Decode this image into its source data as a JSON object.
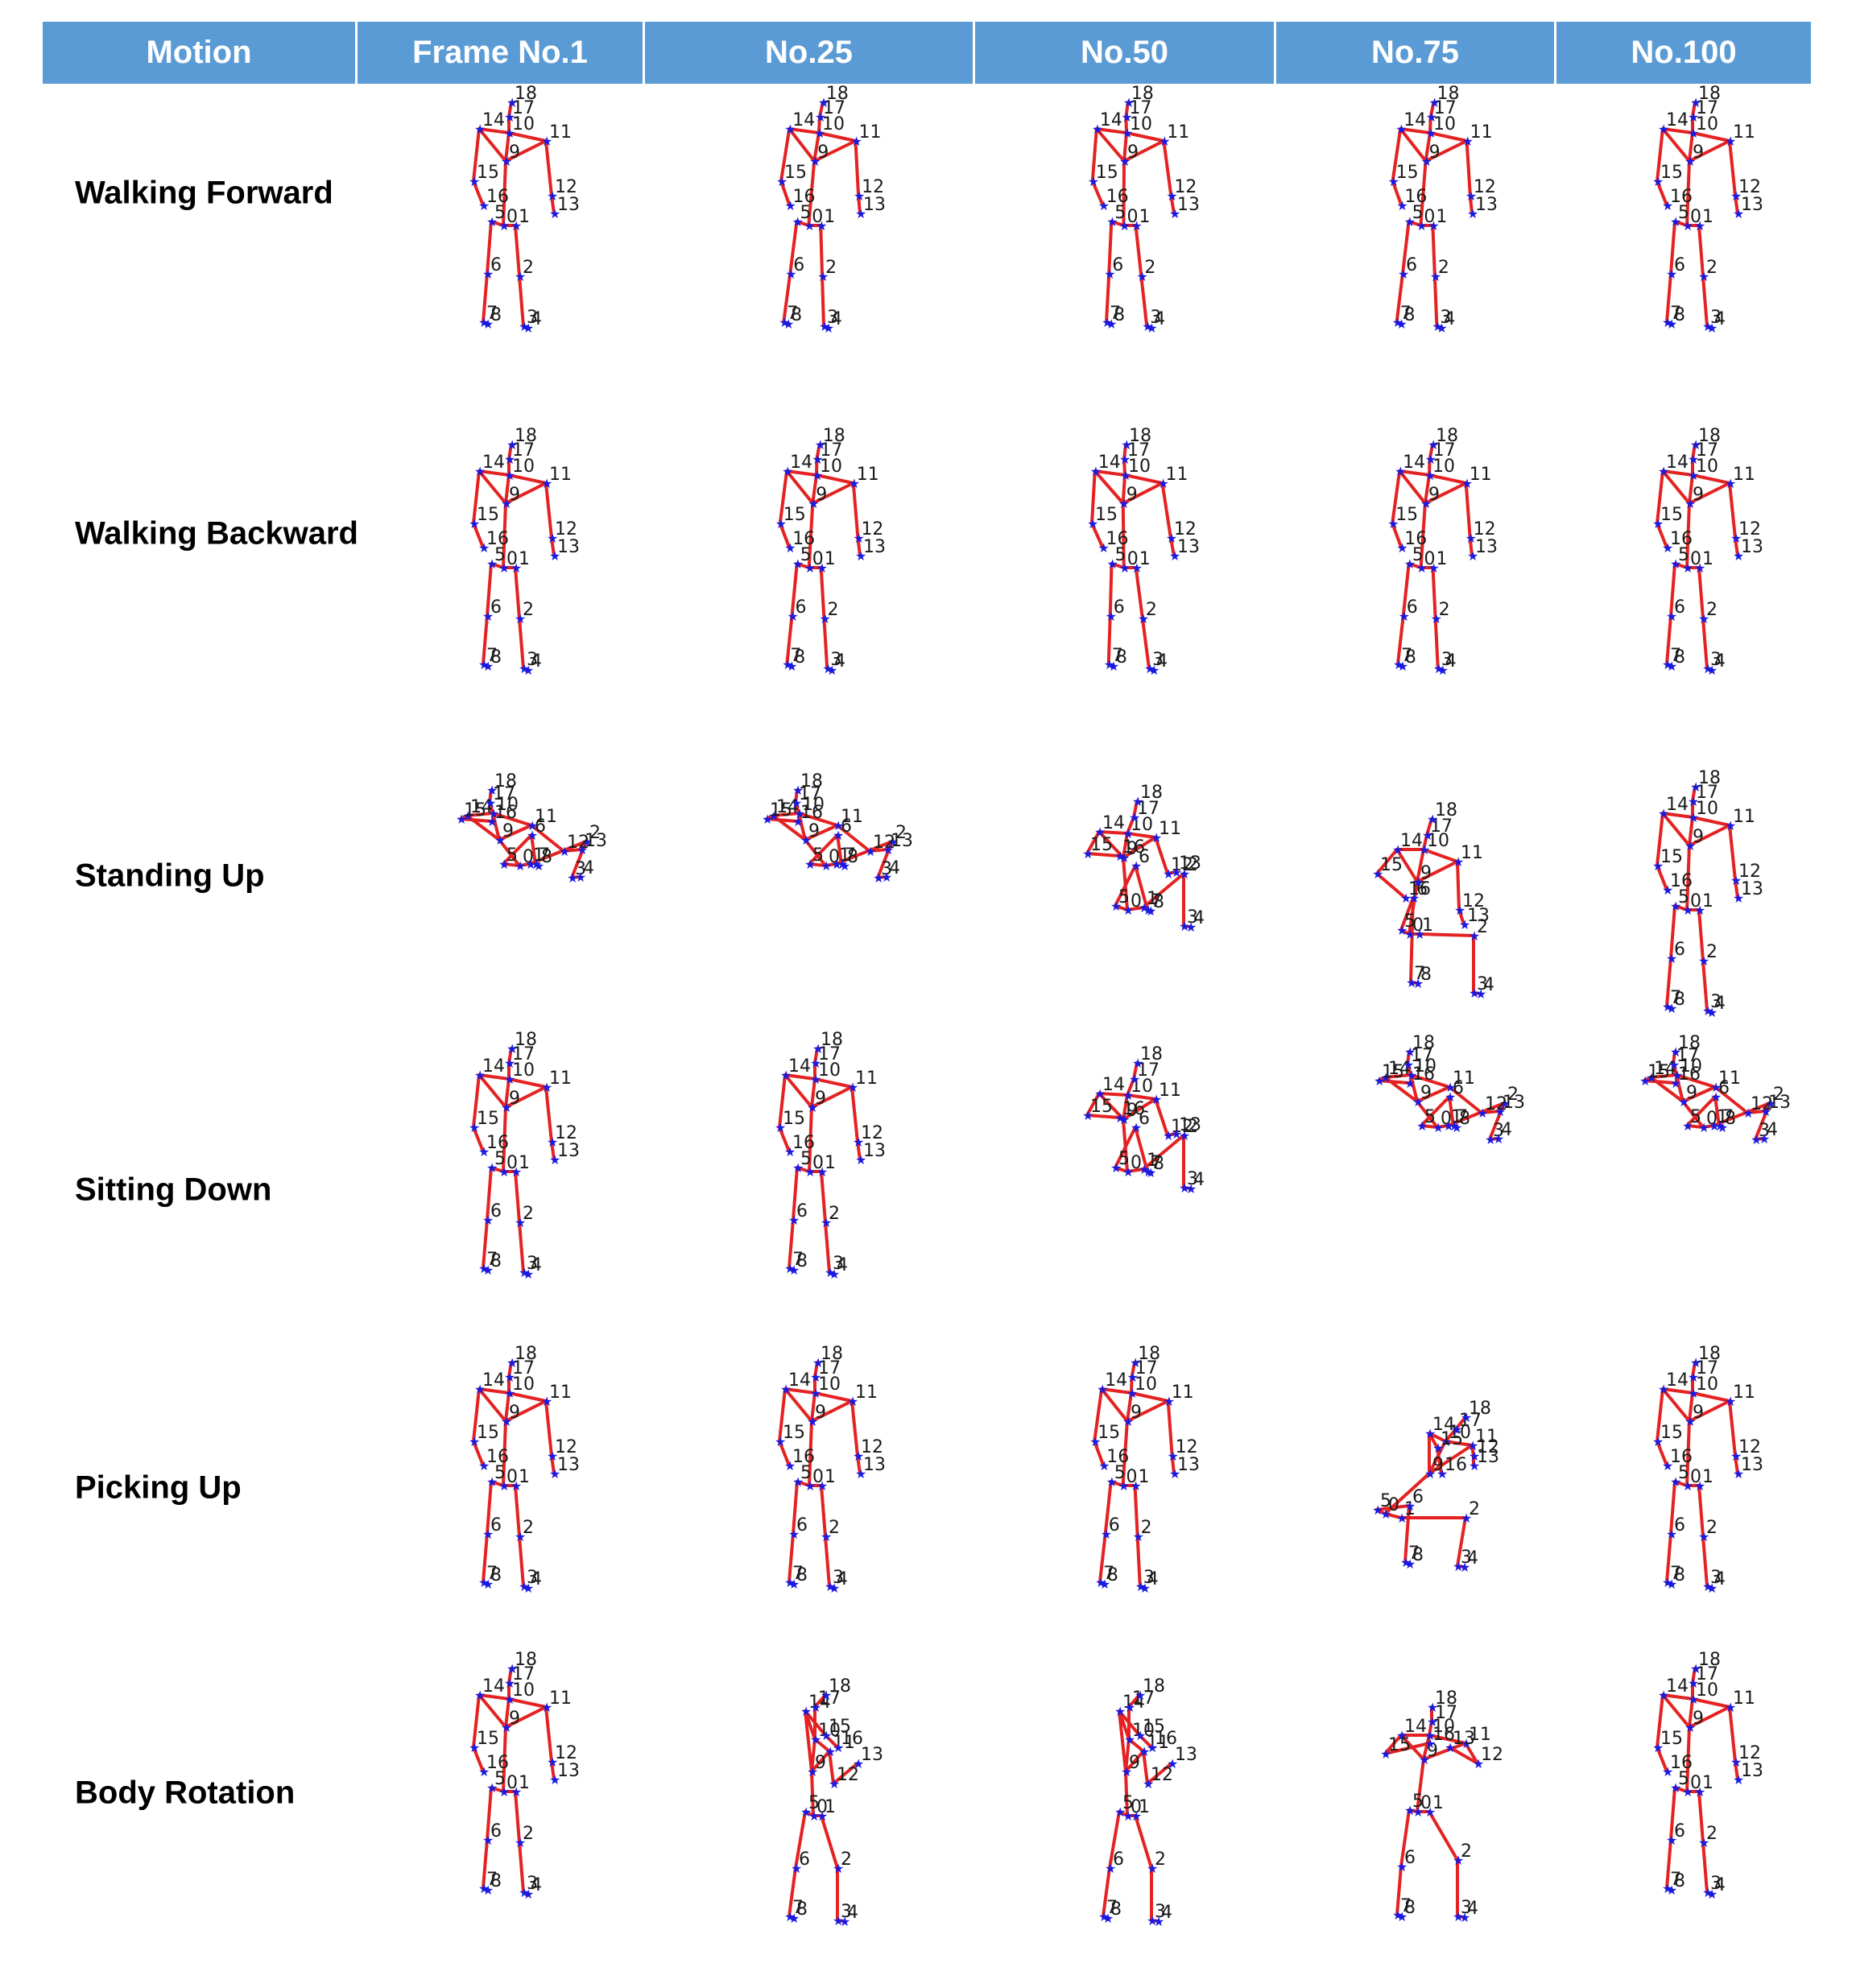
{
  "header": [
    "Motion",
    "Frame No.1",
    "No.25",
    "No.50",
    "No.75",
    "No.100"
  ],
  "rows": [
    {
      "motion": "Walking Forward",
      "frames": [
        {
          "pose": "stand",
          "lean": 0,
          "note": "frame-1"
        },
        {
          "pose": "stand",
          "lean": 0.05
        },
        {
          "pose": "stand",
          "lean": -0.03
        },
        {
          "pose": "stand",
          "lean": 0.04
        },
        {
          "pose": "stand",
          "lean": 0
        }
      ]
    },
    {
      "motion": "Walking Backward",
      "frames": [
        {
          "pose": "stand",
          "lean": 0
        },
        {
          "pose": "stand",
          "lean": 0.02
        },
        {
          "pose": "stand",
          "lean": -0.05
        },
        {
          "pose": "stand",
          "lean": 0.03
        },
        {
          "pose": "stand",
          "lean": 0
        }
      ]
    },
    {
      "motion": "Standing Up",
      "frames": [
        {
          "pose": "sit"
        },
        {
          "pose": "sit"
        },
        {
          "pose": "half"
        },
        {
          "pose": "half-up"
        },
        {
          "pose": "stand",
          "lean": 0
        }
      ]
    },
    {
      "motion": "Sitting Down",
      "frames": [
        {
          "pose": "stand",
          "lean": 0
        },
        {
          "pose": "stand",
          "lean": 0
        },
        {
          "pose": "half"
        },
        {
          "pose": "sit"
        },
        {
          "pose": "sit"
        }
      ]
    },
    {
      "motion": "Picking Up",
      "frames": [
        {
          "pose": "stand",
          "lean": 0
        },
        {
          "pose": "stand",
          "lean": 0
        },
        {
          "pose": "stand",
          "lean": 0.03
        },
        {
          "pose": "bend"
        },
        {
          "pose": "stand",
          "lean": 0
        }
      ]
    },
    {
      "motion": "Body Rotation",
      "frames": [
        {
          "pose": "stand",
          "lean": 0
        },
        {
          "pose": "rotate"
        },
        {
          "pose": "rotate"
        },
        {
          "pose": "rotate-front"
        },
        {
          "pose": "stand",
          "lean": 0
        }
      ]
    }
  ],
  "joint_labels": [
    "0",
    "1",
    "2",
    "3",
    "4",
    "5",
    "6",
    "7",
    "8",
    "9",
    "10",
    "11",
    "12",
    "13",
    "14",
    "15",
    "16",
    "17",
    "18"
  ]
}
